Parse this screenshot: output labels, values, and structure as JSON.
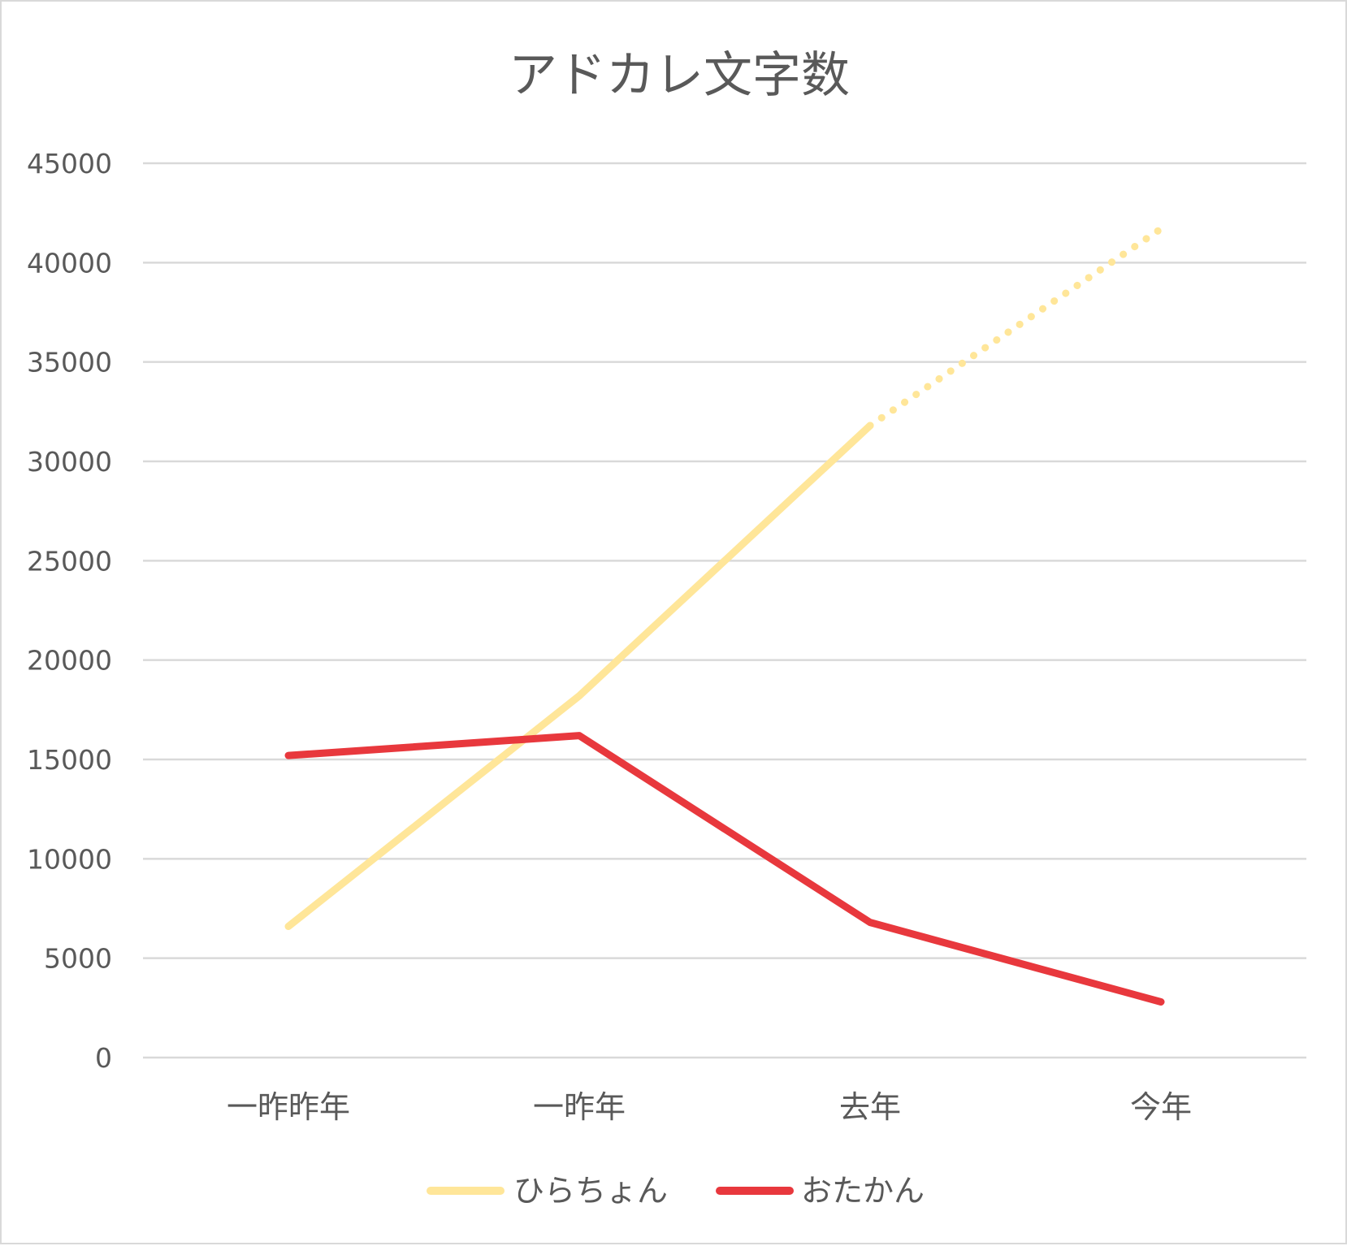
{
  "chart_data": {
    "type": "line",
    "title": "アドカレ文字数",
    "categories": [
      "一昨昨年",
      "一昨年",
      "去年",
      "今年"
    ],
    "ylim": [
      0,
      45000
    ],
    "yticks": [
      0,
      5000,
      10000,
      15000,
      20000,
      25000,
      30000,
      35000,
      40000,
      45000
    ],
    "grid": true,
    "legend_position": "bottom",
    "series": [
      {
        "name": "ひらちょん",
        "values": [
          6600,
          18200,
          31800,
          41700
        ],
        "color": "#FFE699",
        "projected_from_index": 2
      },
      {
        "name": "おたかん",
        "values": [
          15200,
          16200,
          6800,
          2800
        ],
        "color": "#E8383D"
      }
    ]
  }
}
